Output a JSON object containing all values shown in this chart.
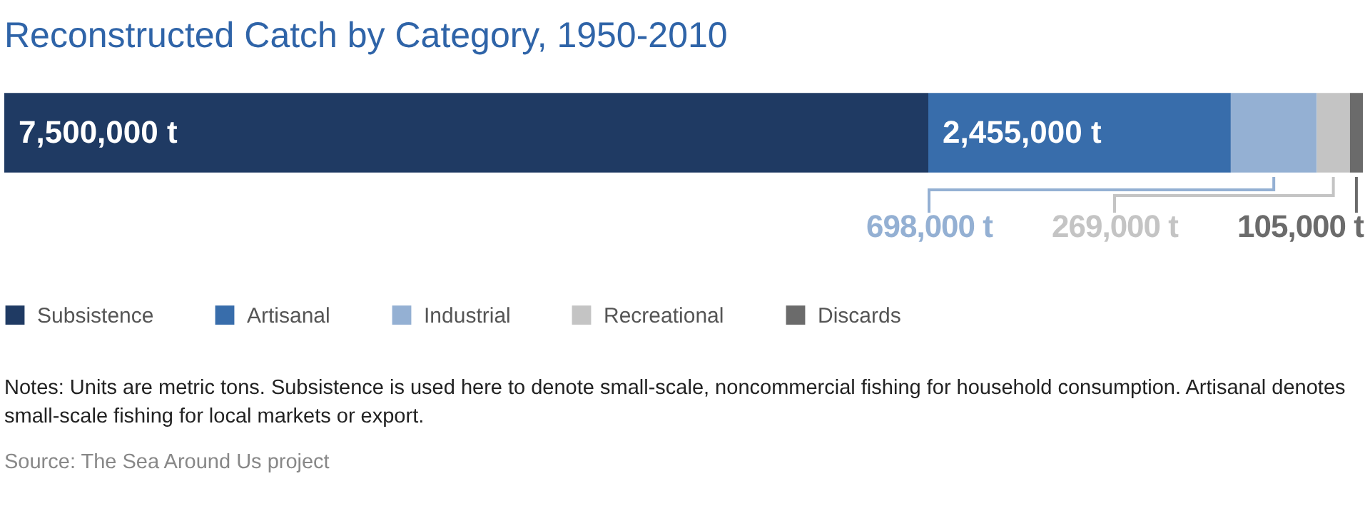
{
  "chart_data": {
    "type": "bar",
    "title": "Reconstructed Catch by Category, 1950-2010",
    "orientation": "horizontal",
    "stacked": true,
    "categories": [
      null
    ],
    "legend": "bottom left",
    "series": [
      {
        "name": "Subsistence",
        "color": "#1f3a63",
        "values": [
          7500000
        ],
        "value_labels": [
          "7,500,000 t"
        ]
      },
      {
        "name": "Artisanal",
        "color": "#386dab",
        "values": [
          2455000
        ],
        "value_labels": [
          "2,455,000 t"
        ]
      },
      {
        "name": "Industrial",
        "color": "#94b0d3",
        "values": [
          698000
        ],
        "value_labels": [
          "698,000 t"
        ]
      },
      {
        "name": "Recreational",
        "color": "#c4c4c4",
        "values": [
          269000
        ],
        "value_labels": [
          "269,000 t"
        ]
      },
      {
        "name": "Discards",
        "color": "#6b6b6b",
        "values": [
          105000
        ],
        "value_labels": [
          "105,000 t"
        ]
      }
    ],
    "annotations": [
      "Notes: Units are metric tons. Subsistence is used here to denote small-scale, noncommercial fishing for household consumption. Artisanal denotes small-scale fishing for local markets or export.",
      "Source: The Sea Around Us project"
    ]
  }
}
